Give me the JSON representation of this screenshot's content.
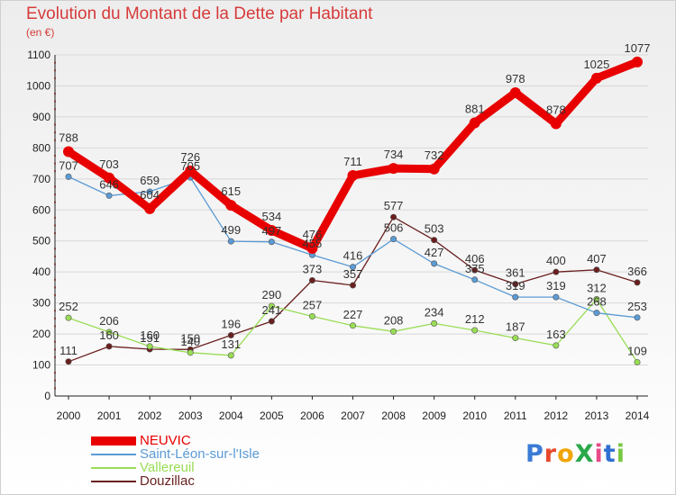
{
  "chart_data": {
    "type": "line",
    "title": "Evolution du Montant de la Dette par Habitant",
    "subtitle": "(en €)",
    "xlabel": "",
    "ylabel": "",
    "categories": [
      "2000",
      "2001",
      "2002",
      "2003",
      "2004",
      "2005",
      "2006",
      "2007",
      "2008",
      "2009",
      "2010",
      "2011",
      "2012",
      "2013",
      "2014"
    ],
    "ylim": [
      0,
      1100
    ],
    "yticks": [
      0,
      100,
      200,
      300,
      400,
      500,
      600,
      700,
      800,
      900,
      1000,
      1100
    ],
    "grid": true,
    "legend": "bottom-left",
    "series": [
      {
        "name": "NEUVIC",
        "color": "#e80000",
        "values": [
          788,
          703,
          604,
          726,
          615,
          534,
          476,
          711,
          734,
          732,
          881,
          978,
          878,
          1025,
          1077
        ]
      },
      {
        "name": "Saint-Léon-sur-l'Isle",
        "color": "#5b9bd5",
        "values": [
          707,
          646,
          659,
          705,
          499,
          497,
          455,
          416,
          506,
          427,
          375,
          319,
          319,
          268,
          253
        ]
      },
      {
        "name": "Vallereuil",
        "color": "#99dd55",
        "values": [
          252,
          206,
          160,
          140,
          131,
          290,
          257,
          227,
          208,
          234,
          212,
          187,
          163,
          312,
          109
        ]
      },
      {
        "name": "Douzillac",
        "color": "#6a1f1f",
        "values": [
          111,
          160,
          151,
          150,
          196,
          241,
          373,
          357,
          577,
          503,
          406,
          361,
          400,
          407,
          366
        ]
      }
    ]
  },
  "logo": {
    "text": "ProXiti",
    "colors": [
      "#3a7bd5",
      "#e8492c",
      "#f0a500",
      "#2ba84a",
      "#e84a8a",
      "#2f6fd1",
      "#7ac943"
    ]
  }
}
